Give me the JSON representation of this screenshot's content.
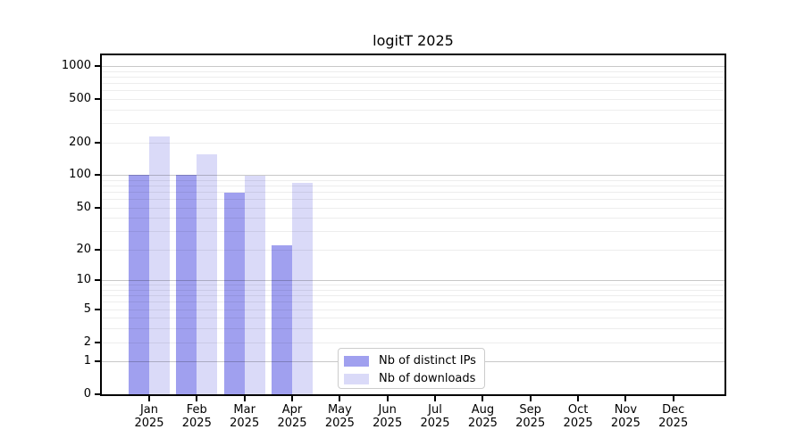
{
  "chart_data": {
    "type": "bar",
    "title": "logitT 2025",
    "categories": [
      "Jan 2025",
      "Feb 2025",
      "Mar 2025",
      "Apr 2025",
      "May 2025",
      "Jun 2025",
      "Jul 2025",
      "Aug 2025",
      "Sep 2025",
      "Oct 2025",
      "Nov 2025",
      "Dec 2025"
    ],
    "series": [
      {
        "name": "Nb of distinct IPs",
        "color": "#a0a0ef",
        "values": [
          100,
          100,
          68,
          22,
          0,
          0,
          0,
          0,
          0,
          0,
          0,
          0
        ]
      },
      {
        "name": "Nb of downloads",
        "color": "#dadaf8",
        "values": [
          225,
          155,
          98,
          84,
          0,
          0,
          0,
          0,
          0,
          0,
          0,
          0
        ]
      }
    ],
    "xlabel": "",
    "ylabel": "",
    "yticks": [
      0,
      1,
      2,
      5,
      10,
      20,
      50,
      100,
      200,
      500,
      1000
    ],
    "major_grid_values": [
      1,
      10,
      100,
      1000
    ],
    "yscale": "log10(1+y)",
    "ylim": [
      0,
      1250
    ],
    "grid": "horizontal major+minor, drawn above bars",
    "legend_position": "lower center-left inside plot",
    "colors": {
      "spine": "#000000",
      "text": "#000000",
      "major_grid": "#c9c9c9",
      "minor_grid": "#ededed",
      "legend_border": "#cccccc",
      "background": "#ffffff"
    }
  }
}
